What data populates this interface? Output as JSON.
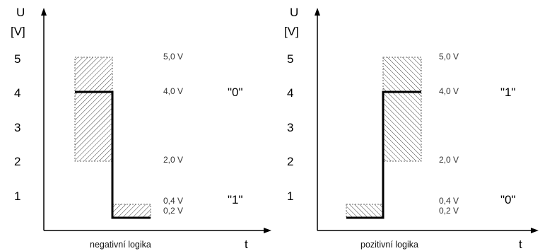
{
  "panels": [
    {
      "axis": {
        "unit_top": "U",
        "unit_bottom": "[V]",
        "t_label": "t"
      },
      "ticks": [
        "5",
        "4",
        "3",
        "2",
        "1"
      ],
      "annotations": {
        "v50": "5,0 V",
        "v40": "4,0 V",
        "v20": "2,0 V",
        "v04": "0,4 V",
        "v02": "0,2 V"
      },
      "logic_high": "\"0\"",
      "logic_low": "\"1\"",
      "caption": "negativní logika"
    },
    {
      "axis": {
        "unit_top": "U",
        "unit_bottom": "[V]",
        "t_label": "t"
      },
      "ticks": [
        "5",
        "4",
        "3",
        "2",
        "1"
      ],
      "annotations": {
        "v50": "5,0 V",
        "v40": "4,0 V",
        "v20": "2,0 V",
        "v04": "0,4 V",
        "v02": "0,2 V"
      },
      "logic_high": "\"1\"",
      "logic_low": "\"0\"",
      "caption": "pozitivní logika"
    }
  ],
  "colors": {
    "line": "#000000",
    "hatch": "#444444"
  }
}
